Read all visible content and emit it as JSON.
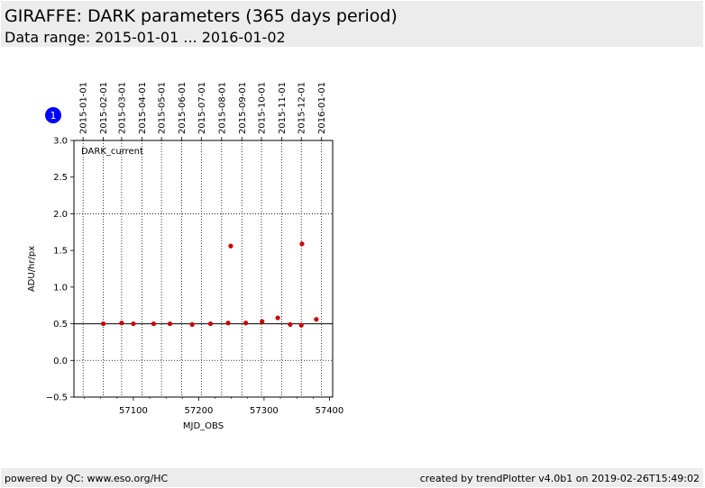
{
  "header": {
    "title": "GIRAFFE: DARK parameters (365 days period)",
    "subtitle": "Data range: 2015-01-01 ... 2016-01-02"
  },
  "footer": {
    "left": "powered by QC: www.eso.org/HC",
    "right": "created by trendPlotter v4.0b1 on 2019-02-26T15:49:02"
  },
  "badge": {
    "label": "1",
    "color": "#0000ff"
  },
  "chart_data": {
    "type": "scatter",
    "panel_label": "DARK_current",
    "xlabel": "MJD_OBS",
    "ylabel": "ADU/hr/px",
    "xlim": [
      57009,
      57405
    ],
    "ylim": [
      -0.5,
      3.0
    ],
    "x_ticks": [
      57100,
      57200,
      57300,
      57400
    ],
    "y_ticks": [
      -0.5,
      0.0,
      0.5,
      1.0,
      1.5,
      2.0,
      2.5,
      3.0
    ],
    "y_tick_labels": [
      "−0.5",
      "0.0",
      "0.5",
      "1.0",
      "1.5",
      "2.0",
      "2.5",
      "3.0"
    ],
    "grid": true,
    "reference_line": 0.5,
    "point_color": "#cc0000",
    "date_ticks": [
      {
        "label": "2015-01-01",
        "mjd": 57023
      },
      {
        "label": "2015-02-01",
        "mjd": 57054
      },
      {
        "label": "2015-03-01",
        "mjd": 57082
      },
      {
        "label": "2015-04-01",
        "mjd": 57113
      },
      {
        "label": "2015-05-01",
        "mjd": 57143
      },
      {
        "label": "2015-06-01",
        "mjd": 57174
      },
      {
        "label": "2015-07-01",
        "mjd": 57204
      },
      {
        "label": "2015-08-01",
        "mjd": 57235
      },
      {
        "label": "2015-09-01",
        "mjd": 57266
      },
      {
        "label": "2015-10-01",
        "mjd": 57296
      },
      {
        "label": "2015-11-01",
        "mjd": 57327
      },
      {
        "label": "2015-12-01",
        "mjd": 57357
      },
      {
        "label": "2016-01-01",
        "mjd": 57388
      }
    ],
    "points": [
      {
        "x": 57054,
        "y": 0.5
      },
      {
        "x": 57082,
        "y": 0.51
      },
      {
        "x": 57100,
        "y": 0.5
      },
      {
        "x": 57131,
        "y": 0.5
      },
      {
        "x": 57156,
        "y": 0.5
      },
      {
        "x": 57190,
        "y": 0.49
      },
      {
        "x": 57218,
        "y": 0.5
      },
      {
        "x": 57245,
        "y": 0.51
      },
      {
        "x": 57249,
        "y": 1.56
      },
      {
        "x": 57272,
        "y": 0.51
      },
      {
        "x": 57297,
        "y": 0.53
      },
      {
        "x": 57321,
        "y": 0.58
      },
      {
        "x": 57340,
        "y": 0.49
      },
      {
        "x": 57357,
        "y": 0.48
      },
      {
        "x": 57358,
        "y": 1.59
      },
      {
        "x": 57380,
        "y": 0.56
      }
    ]
  }
}
